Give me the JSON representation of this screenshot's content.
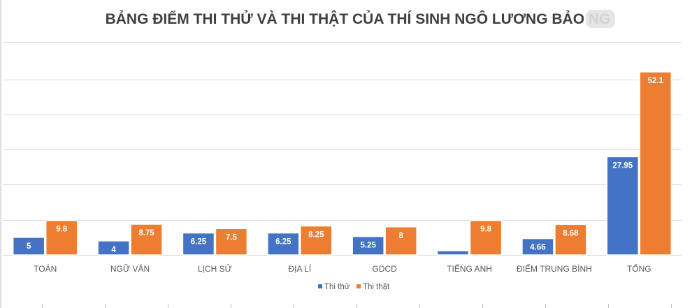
{
  "chart_data": {
    "type": "bar",
    "title": "BẢNG ĐIỂM THI THỬ VÀ THI THẬT CỦA THÍ SINH NGÔ LƯƠNG BẢO NG",
    "categories": [
      "TOÁN",
      "NGỮ VĂN",
      "LỊCH SỬ",
      "ĐỊA LÍ",
      "GDCD",
      "TIẾNG ANH",
      "ĐIỂM TRUNG BÌNH",
      "TỔNG"
    ],
    "series": [
      {
        "name": "Thi thử",
        "values": [
          5,
          4,
          6.25,
          6.25,
          5.25,
          1.2,
          4.66,
          27.95
        ]
      },
      {
        "name": "Thi thật",
        "values": [
          9.8,
          8.75,
          7.5,
          8.25,
          8,
          9.8,
          8.68,
          52.1
        ]
      }
    ],
    "value_labels": [
      [
        "5",
        "4",
        "6.25",
        "6.25",
        "5.25",
        "1.2",
        "4.66",
        "27.95"
      ],
      [
        "9.8",
        "8.75",
        "7.5",
        "8.25",
        "8",
        "9.8",
        "8.68",
        "52.1"
      ]
    ],
    "colors": [
      "#4472c4",
      "#ed7d31"
    ],
    "ylim": [
      0,
      55
    ],
    "grid": true,
    "legend": "bottom-center",
    "data_labels": "inside-top",
    "xlabel": "",
    "ylabel": ""
  }
}
